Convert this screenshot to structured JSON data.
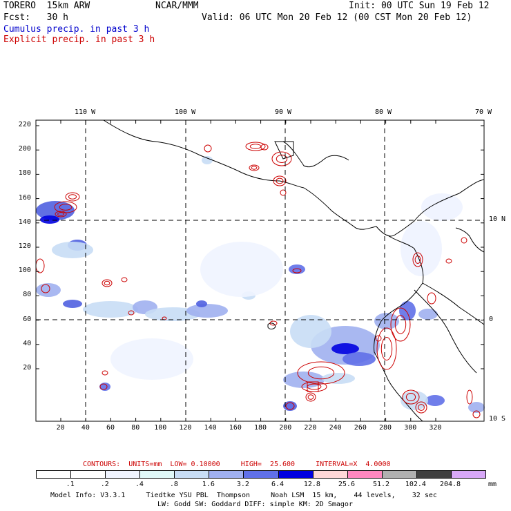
{
  "header": {
    "model": "TORERO  15km ARW",
    "org": "NCAR/MMM",
    "init": "Init: 00 UTC Sun 19 Feb 12",
    "fcst": "Fcst:   30 h",
    "valid": "Valid: 06 UTC Mon 20 Feb 12 (00 CST Mon 20 Feb 12)",
    "cumulus_label": "Cumulus precip. in past 3 h",
    "explicit_label": "Explicit precip. in past 3 h"
  },
  "colors": {
    "cumulus": "#0000cc",
    "explicit": "#cc0000",
    "coast": "#000000"
  },
  "axes": {
    "lon_labels": [
      "110 W",
      "100 W",
      "90 W",
      "80 W",
      "70 W"
    ],
    "lat_labels": [
      "10 N",
      "0",
      "10 S"
    ],
    "x_ticks": [
      "20",
      "40",
      "60",
      "80",
      "100",
      "120",
      "140",
      "160",
      "180",
      "200",
      "220",
      "240",
      "260",
      "280",
      "300",
      "320"
    ],
    "y_ticks": [
      "220",
      "200",
      "180",
      "160",
      "140",
      "120",
      "100",
      "80",
      "60",
      "40",
      "20"
    ]
  },
  "contour_info": {
    "text": "CONTOURS:  UNITS=mm  LOW= 0.10000     HIGH=  25.600     INTERVAL=X  4.0000"
  },
  "colorbar": {
    "unit": "mm",
    "labels": [
      ".1",
      ".2",
      ".4",
      ".8",
      "1.6",
      "3.2",
      "6.4",
      "12.8",
      "25.6",
      "51.2",
      "102.4",
      "204.8"
    ],
    "colors": [
      "#ffffff",
      "#ffffff",
      "#f0f4ff",
      "#e0f8f8",
      "#c8ddf5",
      "#a0b0f0",
      "#6070e8",
      "#0000e0",
      "#ffd8d8",
      "#ff88c0",
      "#b0b0b0",
      "#404040",
      "#d8a8f8"
    ]
  },
  "footer": {
    "line1": "Model Info: V3.3.1     Tiedtke YSU PBL  Thompson     Noah LSM  15 km,    44 levels,    32 sec",
    "line2": "LW: Godd SW: Goddard DIFF: simple KM: 2D Smagor"
  }
}
